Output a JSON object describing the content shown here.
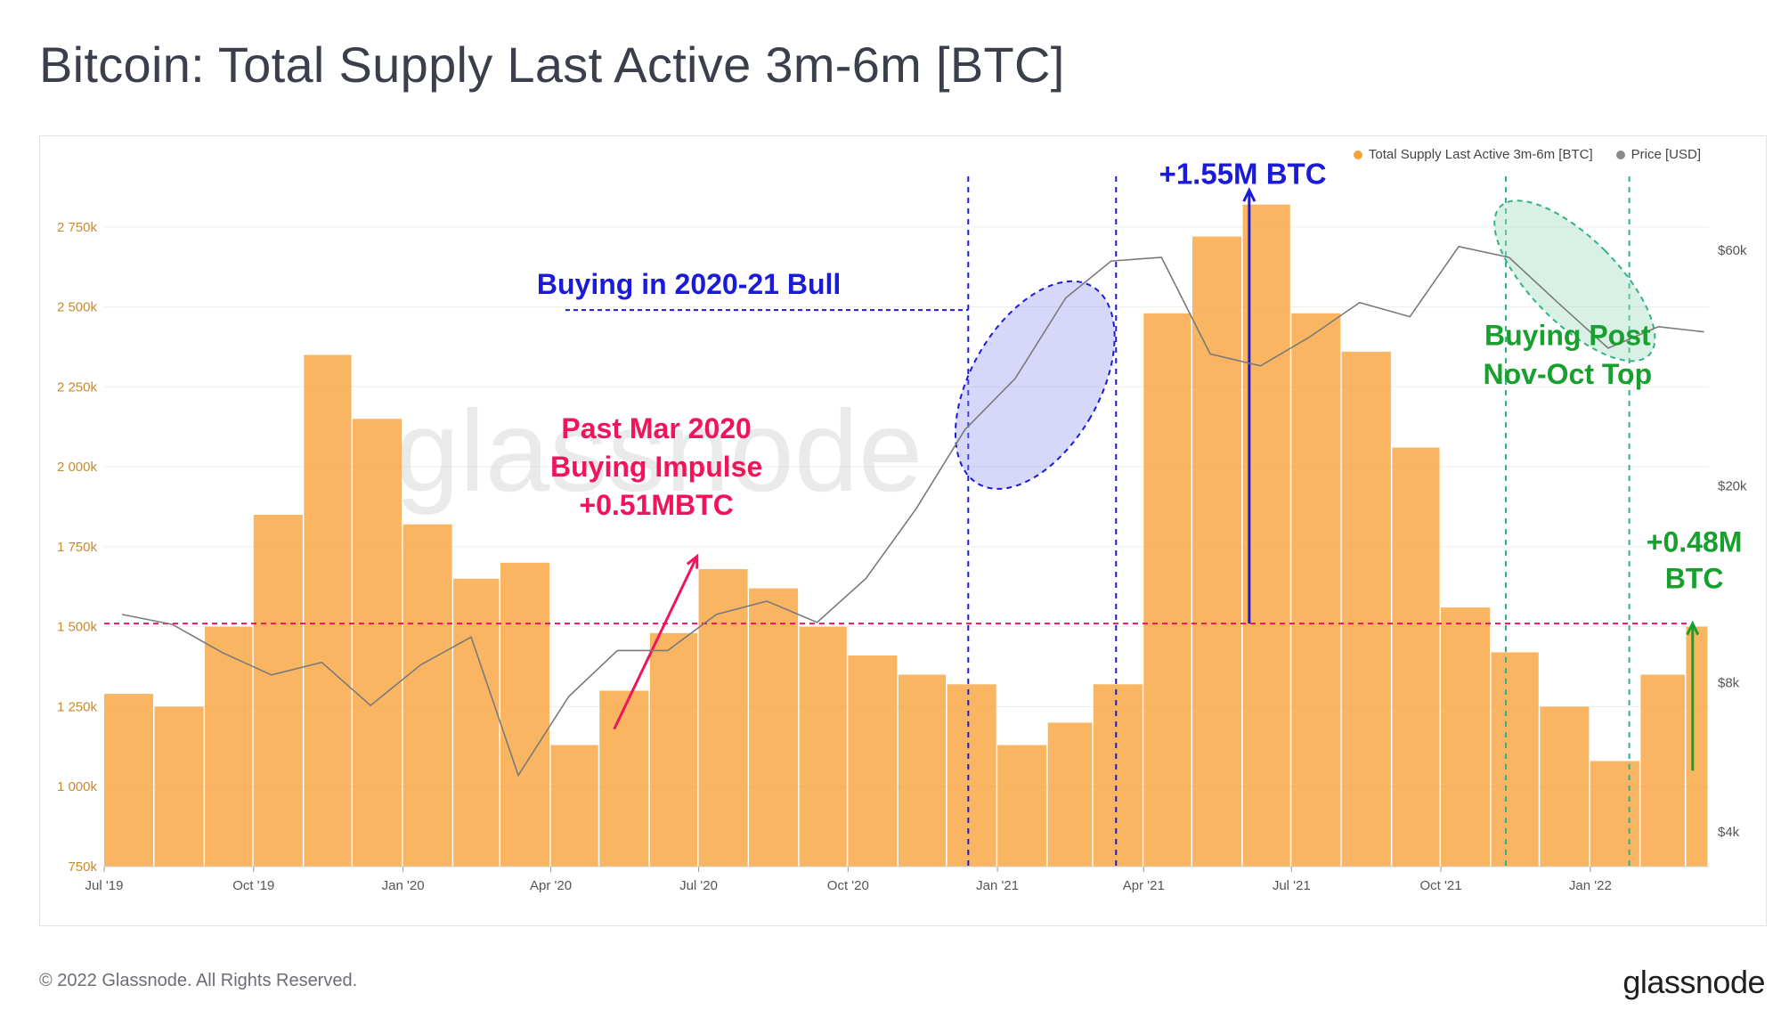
{
  "header": {
    "title": "Bitcoin: Total Supply Last Active 3m-6m [BTC]"
  },
  "footer": {
    "copyright": "© 2022 Glassnode. All Rights Reserved.",
    "logo": "glassnode"
  },
  "watermark": "glassnode",
  "legend": {
    "supply_label": "Total Supply Last Active 3m-6m [BTC]",
    "price_label": "Price [USD]",
    "supply_color": "#f7a23b",
    "price_color": "#8a8a8a"
  },
  "annotations": {
    "bull_label": "Buying in 2020-21 Bull",
    "impulse_line1": "Past Mar 2020",
    "impulse_line2": "Buying Impulse",
    "impulse_line3": "+0.51MBTC",
    "peak_label": "+1.55M BTC",
    "post_top_line1": "Buying Post",
    "post_top_line2": "Nov-Oct Top",
    "recent_line1": "+0.48M",
    "recent_line2": "BTC",
    "colors": {
      "blue": "#1a1adb",
      "pink": "#f0145a",
      "green": "#17a02e",
      "teal": "#2db38a"
    }
  },
  "chart_data": {
    "type": "bar",
    "title": "Bitcoin: Total Supply Last Active 3m-6m [BTC]",
    "x_range": [
      "2019-07-01",
      "2022-03-15"
    ],
    "x_ticks": [
      "Jul '19",
      "Oct '19",
      "Jan '20",
      "Apr '20",
      "Jul '20",
      "Oct '20",
      "Jan '21",
      "Apr '21",
      "Jul '21",
      "Oct '21",
      "Jan '22"
    ],
    "y_left": {
      "label": "",
      "ylim": [
        750,
        2950
      ],
      "ticks": [
        "750k",
        "1 000k",
        "1 250k",
        "1 500k",
        "1 750k",
        "2 000k",
        "2 250k",
        "2 500k",
        "2 750k"
      ],
      "unit": "k BTC"
    },
    "y_right": {
      "label": "",
      "scale": "log",
      "ticks": [
        "$4k",
        "$8k",
        "$20k",
        "$60k"
      ]
    },
    "reference_line_y": 1510,
    "series": [
      {
        "name": "Total Supply Last Active 3m-6m [BTC]",
        "kind": "bar",
        "x": [
          "2019-07",
          "2019-08",
          "2019-09",
          "2019-10",
          "2019-11",
          "2019-12",
          "2020-01",
          "2020-02",
          "2020-03",
          "2020-04",
          "2020-05",
          "2020-06",
          "2020-07",
          "2020-08",
          "2020-09",
          "2020-10",
          "2020-11",
          "2020-12",
          "2021-01",
          "2021-02",
          "2021-03",
          "2021-04",
          "2021-05",
          "2021-06",
          "2021-07",
          "2021-08",
          "2021-09",
          "2021-10",
          "2021-11",
          "2021-12",
          "2022-01",
          "2022-02",
          "2022-03"
        ],
        "values": [
          1290,
          1250,
          1500,
          1850,
          2350,
          2150,
          1820,
          1650,
          1700,
          1130,
          1300,
          1480,
          1680,
          1620,
          1500,
          1410,
          1350,
          1320,
          1130,
          1200,
          1320,
          2480,
          2720,
          2820,
          2480,
          2360,
          2060,
          1560,
          1420,
          1250,
          1080,
          1350,
          1500
        ]
      },
      {
        "name": "Price [USD]",
        "kind": "line",
        "x": [
          "2019-07",
          "2019-08",
          "2019-09",
          "2019-10",
          "2019-11",
          "2019-12",
          "2020-01",
          "2020-02",
          "2020-03",
          "2020-04",
          "2020-05",
          "2020-06",
          "2020-07",
          "2020-08",
          "2020-09",
          "2020-10",
          "2020-11",
          "2020-12",
          "2021-01",
          "2021-02",
          "2021-03",
          "2021-04",
          "2021-05",
          "2021-06",
          "2021-07",
          "2021-08",
          "2021-09",
          "2021-10",
          "2021-11",
          "2021-12",
          "2022-01",
          "2022-02",
          "2022-03"
        ],
        "values": [
          11000,
          10500,
          9200,
          8300,
          8800,
          7200,
          8700,
          9900,
          5200,
          7500,
          9300,
          9300,
          11000,
          11700,
          10600,
          13000,
          18000,
          26000,
          33000,
          48000,
          57000,
          58000,
          37000,
          35000,
          40000,
          47000,
          44000,
          61000,
          58000,
          47000,
          38000,
          42000,
          41000
        ]
      }
    ]
  }
}
